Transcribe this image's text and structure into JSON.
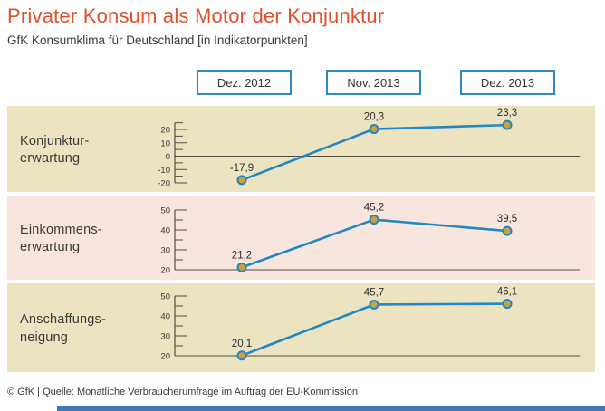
{
  "header": {
    "title": "Privater Konsum als Motor der Konjunktur",
    "subtitle": "GfK Konsumklima für Deutschland [in Indikatorpunkten]"
  },
  "columns": [
    "Dez. 2012",
    "Nov. 2013",
    "Dez. 2013"
  ],
  "footer": {
    "source": "© GfK | Quelle: Monatliche Verbraucherumfrage im Auftrag der EU-Kommission"
  },
  "theme": {
    "title_color": "#e0502a",
    "text_color": "#3a3a3a",
    "line_color": "#2188c2",
    "marker_fill": "#cf9f3e",
    "box_border_color": "#2e8bc0",
    "axis_color": "#524e46",
    "beige": "#ece3c1",
    "rose": "#f8e5dd",
    "bottom_bar_color": "#4277b5"
  },
  "chart_data": [
    {
      "type": "line",
      "row_label": "Konjunktur-\nerwartung",
      "categories": [
        "Dez. 2012",
        "Nov. 2013",
        "Dez. 2013"
      ],
      "values": [
        -17.9,
        20.3,
        23.3
      ],
      "value_labels": [
        "-17,9",
        "20,3",
        "23,3"
      ],
      "ylim": [
        -20,
        25
      ],
      "ytick_labels": [
        20,
        10,
        0,
        -10,
        -20
      ],
      "ytick_step": 5,
      "baseline_value": 0,
      "bg": "beige"
    },
    {
      "type": "line",
      "row_label": "Einkommens-\nerwartung",
      "categories": [
        "Dez. 2012",
        "Nov. 2013",
        "Dez. 2013"
      ],
      "values": [
        21.2,
        45.2,
        39.5
      ],
      "value_labels": [
        "21,2",
        "45,2",
        "39,5"
      ],
      "ylim": [
        20,
        50
      ],
      "ytick_labels": [
        50,
        40,
        30,
        20
      ],
      "ytick_step": 5,
      "baseline_value": 20,
      "bg": "rose"
    },
    {
      "type": "line",
      "row_label": "Anschaffungs-\nneigung",
      "categories": [
        "Dez. 2012",
        "Nov. 2013",
        "Dez. 2013"
      ],
      "values": [
        20.1,
        45.7,
        46.1
      ],
      "value_labels": [
        "20,1",
        "45,7",
        "46,1"
      ],
      "ylim": [
        20,
        50
      ],
      "ytick_labels": [
        50,
        40,
        30,
        20
      ],
      "ytick_step": 5,
      "baseline_value": 20,
      "bg": "beige"
    }
  ]
}
